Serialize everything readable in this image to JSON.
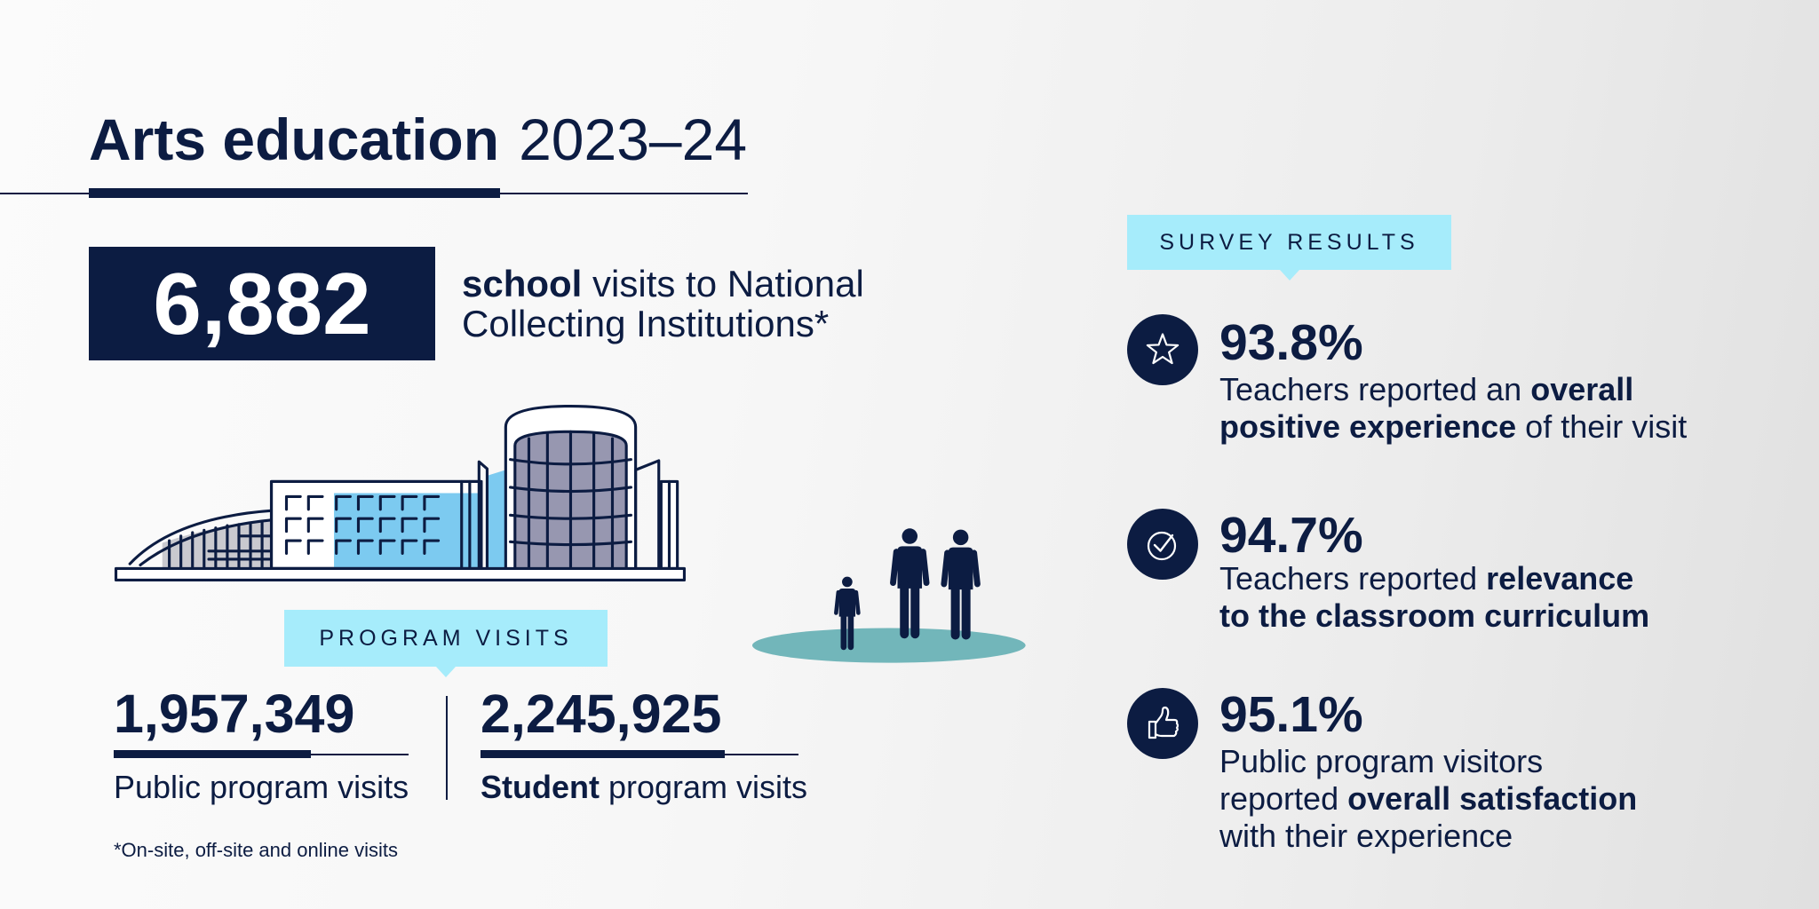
{
  "title": {
    "bold": "Arts education",
    "year": "2023–24"
  },
  "headline": {
    "value": "6,882",
    "label_bold": "school",
    "label_line1_rest": " visits to National",
    "label_line2": "Collecting Institutions*"
  },
  "program_visits": {
    "heading": "PROGRAM VISITS",
    "public": {
      "value": "1,957,349",
      "label": "Public program visits"
    },
    "student": {
      "value": "2,245,925",
      "label_bold": "Student",
      "label_rest": " program visits"
    }
  },
  "footnote": "*On-site, off-site and online visits",
  "survey": {
    "heading": "SURVEY RESULTS",
    "items": [
      {
        "value": "93.8%",
        "icon": "star-icon",
        "lines": [
          [
            "Teachers reported an ",
            "overall"
          ],
          [
            "positive experience",
            " of their visit"
          ]
        ]
      },
      {
        "value": "94.7%",
        "icon": "checkmark-circle-icon",
        "lines": [
          [
            "Teachers reported ",
            "relevance"
          ],
          [
            "to the classroom curriculum"
          ]
        ]
      },
      {
        "value": "95.1%",
        "icon": "thumbs-up-icon",
        "lines": [
          [
            "Public program visitors"
          ],
          [
            "reported ",
            "overall satisfaction"
          ],
          [
            "with their experience"
          ]
        ]
      }
    ]
  },
  "colors": {
    "navy": "#0c1c42",
    "label_bg": "#a6ecfb",
    "building_blue": "#7ccaf0",
    "building_purple": "#9797b0",
    "ground": "#72b6ba"
  }
}
